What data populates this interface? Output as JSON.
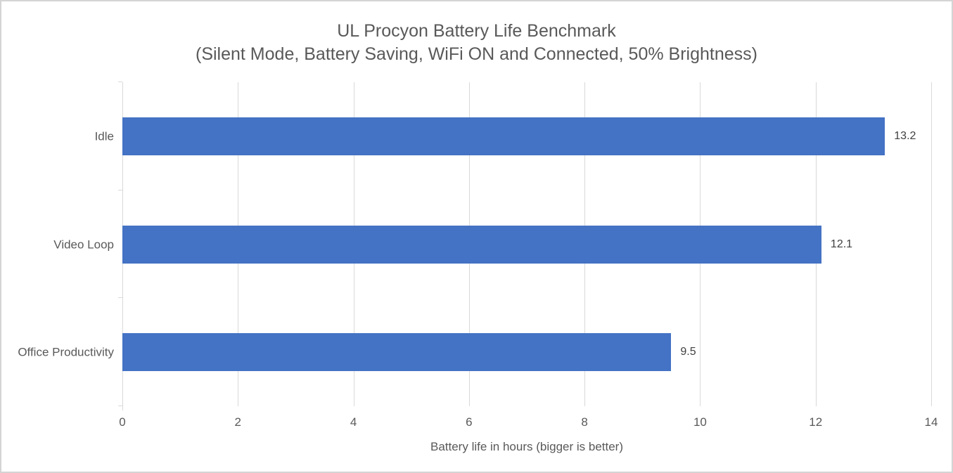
{
  "chart_data": {
    "type": "bar",
    "orientation": "horizontal",
    "title": "UL Procyon Battery Life Benchmark",
    "subtitle": "(Silent Mode, Battery Saving, WiFi ON and Connected, 50% Brightness)",
    "xlabel": "Battery life in hours (bigger is better)",
    "ylabel": "",
    "categories": [
      "Idle",
      "Video Loop",
      "Office Productivity"
    ],
    "values": [
      13.2,
      12.1,
      9.5
    ],
    "data_labels": [
      "13.2",
      "12.1",
      "9.5"
    ],
    "xlim": [
      0,
      14
    ],
    "xticks": [
      0,
      2,
      4,
      6,
      8,
      10,
      12,
      14
    ],
    "grid": true,
    "legend": "none",
    "bar_color": "#4472C4",
    "gridline_color": "#D9D9D9",
    "text_color": "#595959",
    "data_label_color": "#404040",
    "border_color": "#D4D4D4"
  }
}
